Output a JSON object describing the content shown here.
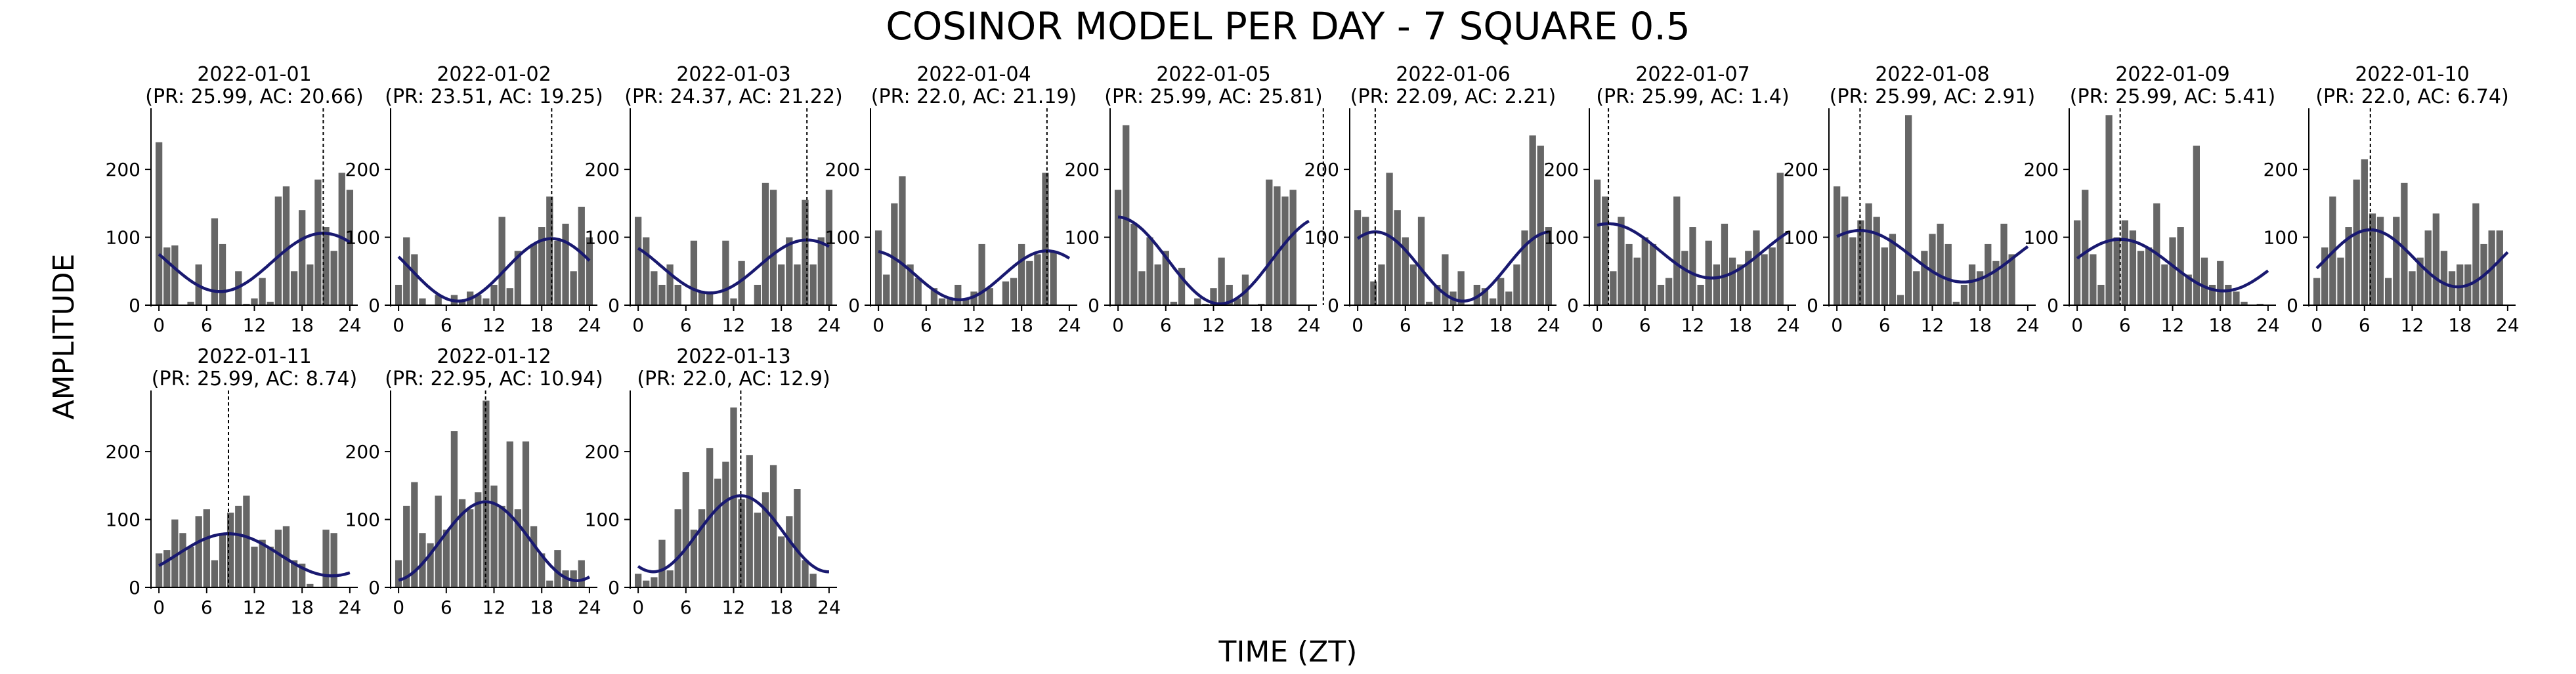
{
  "figure": {
    "title": "COSINOR MODEL PER DAY - 7 SQUARE 0.5",
    "xlabel": "TIME (ZT)",
    "ylabel": "AMPLITUDE"
  },
  "colors": {
    "bars": "#666666",
    "fit": "#191970",
    "acrophase_line": "#000000"
  },
  "chart_data": {
    "type": "bar",
    "layout": "small multiples, 10 columns x 2 rows",
    "x_ticks": [
      0,
      6,
      12,
      18,
      24
    ],
    "y_ticks": [
      0,
      100,
      200
    ],
    "xlim": [
      -1,
      25
    ],
    "ylim": [
      0,
      290
    ],
    "panels": [
      {
        "date": "2022-01-01",
        "subtitle": "(PR: 25.99, AC: 20.66)",
        "period": 25.99,
        "acrophase": 20.66,
        "mesor": 63,
        "amplitude": 43,
        "bars": [
          [
            0,
            240
          ],
          [
            1,
            85
          ],
          [
            2,
            88
          ],
          [
            4,
            5
          ],
          [
            5,
            60
          ],
          [
            7,
            128
          ],
          [
            8,
            90
          ],
          [
            10,
            50
          ],
          [
            11,
            2
          ],
          [
            12,
            10
          ],
          [
            13,
            40
          ],
          [
            14,
            5
          ],
          [
            15,
            160
          ],
          [
            16,
            175
          ],
          [
            17,
            50
          ],
          [
            18,
            140
          ],
          [
            19,
            60
          ],
          [
            20,
            185
          ],
          [
            21,
            115
          ],
          [
            22,
            80
          ],
          [
            23,
            195
          ],
          [
            24,
            170
          ]
        ]
      },
      {
        "date": "2022-01-02",
        "subtitle": "(PR: 23.51, AC: 19.25)",
        "period": 23.51,
        "acrophase": 19.25,
        "mesor": 52,
        "amplitude": 46,
        "bars": [
          [
            0,
            30
          ],
          [
            1,
            100
          ],
          [
            2,
            75
          ],
          [
            3,
            10
          ],
          [
            5,
            15
          ],
          [
            7,
            15
          ],
          [
            8,
            5
          ],
          [
            9,
            20
          ],
          [
            10,
            15
          ],
          [
            11,
            10
          ],
          [
            12,
            30
          ],
          [
            13,
            130
          ],
          [
            14,
            25
          ],
          [
            15,
            80
          ],
          [
            17,
            90
          ],
          [
            18,
            115
          ],
          [
            19,
            160
          ],
          [
            20,
            95
          ],
          [
            21,
            120
          ],
          [
            22,
            50
          ],
          [
            23,
            145
          ],
          [
            24,
            100
          ]
        ]
      },
      {
        "date": "2022-01-03",
        "subtitle": "(PR: 24.37, AC: 21.22)",
        "period": 24.37,
        "acrophase": 21.22,
        "mesor": 57,
        "amplitude": 39,
        "bars": [
          [
            0,
            130
          ],
          [
            1,
            100
          ],
          [
            2,
            50
          ],
          [
            3,
            30
          ],
          [
            4,
            60
          ],
          [
            5,
            30
          ],
          [
            7,
            95
          ],
          [
            8,
            20
          ],
          [
            9,
            20
          ],
          [
            11,
            95
          ],
          [
            12,
            10
          ],
          [
            13,
            65
          ],
          [
            15,
            30
          ],
          [
            16,
            180
          ],
          [
            17,
            170
          ],
          [
            18,
            60
          ],
          [
            19,
            100
          ],
          [
            20,
            60
          ],
          [
            21,
            155
          ],
          [
            22,
            60
          ],
          [
            23,
            100
          ],
          [
            24,
            170
          ]
        ]
      },
      {
        "date": "2022-01-04",
        "subtitle": "(PR: 22.0, AC: 21.19)",
        "period": 22.0,
        "acrophase": 21.19,
        "mesor": 44,
        "amplitude": 36,
        "bars": [
          [
            0,
            110
          ],
          [
            1,
            45
          ],
          [
            2,
            150
          ],
          [
            3,
            190
          ],
          [
            4,
            60
          ],
          [
            5,
            40
          ],
          [
            7,
            25
          ],
          [
            8,
            10
          ],
          [
            9,
            10
          ],
          [
            10,
            30
          ],
          [
            11,
            10
          ],
          [
            12,
            20
          ],
          [
            13,
            90
          ],
          [
            14,
            25
          ],
          [
            16,
            35
          ],
          [
            17,
            40
          ],
          [
            18,
            90
          ],
          [
            19,
            65
          ],
          [
            20,
            75
          ],
          [
            21,
            195
          ],
          [
            22,
            80
          ]
        ]
      },
      {
        "date": "2022-01-05",
        "subtitle": "(PR: 25.99, AC: 25.81)",
        "period": 25.99,
        "acrophase": 25.81,
        "mesor": 66,
        "amplitude": 64,
        "bars": [
          [
            0,
            170
          ],
          [
            1,
            265
          ],
          [
            2,
            120
          ],
          [
            3,
            50
          ],
          [
            4,
            100
          ],
          [
            5,
            60
          ],
          [
            6,
            80
          ],
          [
            7,
            5
          ],
          [
            8,
            55
          ],
          [
            10,
            10
          ],
          [
            11,
            2
          ],
          [
            12,
            25
          ],
          [
            13,
            70
          ],
          [
            14,
            30
          ],
          [
            15,
            10
          ],
          [
            16,
            45
          ],
          [
            18,
            2
          ],
          [
            19,
            185
          ],
          [
            20,
            175
          ],
          [
            21,
            160
          ],
          [
            22,
            170
          ]
        ]
      },
      {
        "date": "2022-01-06",
        "subtitle": "(PR: 22.09, AC: 2.21)",
        "period": 22.09,
        "acrophase": 2.21,
        "mesor": 57,
        "amplitude": 51,
        "bars": [
          [
            0,
            140
          ],
          [
            1,
            130
          ],
          [
            2,
            35
          ],
          [
            3,
            60
          ],
          [
            4,
            195
          ],
          [
            5,
            140
          ],
          [
            6,
            100
          ],
          [
            7,
            60
          ],
          [
            8,
            130
          ],
          [
            9,
            5
          ],
          [
            10,
            30
          ],
          [
            11,
            75
          ],
          [
            12,
            20
          ],
          [
            13,
            50
          ],
          [
            15,
            30
          ],
          [
            16,
            25
          ],
          [
            17,
            10
          ],
          [
            18,
            40
          ],
          [
            19,
            20
          ],
          [
            20,
            60
          ],
          [
            21,
            110
          ],
          [
            22,
            250
          ],
          [
            23,
            235
          ],
          [
            24,
            115
          ]
        ]
      },
      {
        "date": "2022-01-07",
        "subtitle": "(PR: 25.99, AC: 1.4)",
        "period": 25.99,
        "acrophase": 1.4,
        "mesor": 80,
        "amplitude": 40,
        "bars": [
          [
            0,
            185
          ],
          [
            1,
            160
          ],
          [
            2,
            50
          ],
          [
            3,
            130
          ],
          [
            4,
            90
          ],
          [
            5,
            70
          ],
          [
            6,
            100
          ],
          [
            7,
            90
          ],
          [
            8,
            30
          ],
          [
            9,
            40
          ],
          [
            10,
            160
          ],
          [
            11,
            80
          ],
          [
            12,
            115
          ],
          [
            13,
            30
          ],
          [
            14,
            95
          ],
          [
            15,
            60
          ],
          [
            16,
            120
          ],
          [
            17,
            70
          ],
          [
            18,
            60
          ],
          [
            19,
            80
          ],
          [
            20,
            110
          ],
          [
            21,
            75
          ],
          [
            22,
            85
          ],
          [
            23,
            195
          ]
        ]
      },
      {
        "date": "2022-01-08",
        "subtitle": "(PR: 25.99, AC: 2.91)",
        "period": 25.99,
        "acrophase": 2.91,
        "mesor": 72,
        "amplitude": 38,
        "bars": [
          [
            0,
            175
          ],
          [
            1,
            160
          ],
          [
            2,
            100
          ],
          [
            3,
            125
          ],
          [
            4,
            150
          ],
          [
            5,
            130
          ],
          [
            6,
            85
          ],
          [
            7,
            105
          ],
          [
            8,
            15
          ],
          [
            9,
            280
          ],
          [
            10,
            50
          ],
          [
            11,
            80
          ],
          [
            12,
            105
          ],
          [
            13,
            120
          ],
          [
            14,
            90
          ],
          [
            15,
            5
          ],
          [
            16,
            30
          ],
          [
            17,
            60
          ],
          [
            18,
            50
          ],
          [
            19,
            90
          ],
          [
            20,
            65
          ],
          [
            21,
            120
          ],
          [
            22,
            75
          ]
        ]
      },
      {
        "date": "2022-01-09",
        "subtitle": "(PR: 25.99, AC: 5.41)",
        "period": 25.99,
        "acrophase": 5.41,
        "mesor": 59,
        "amplitude": 38,
        "bars": [
          [
            0,
            125
          ],
          [
            1,
            170
          ],
          [
            2,
            75
          ],
          [
            3,
            30
          ],
          [
            4,
            280
          ],
          [
            5,
            100
          ],
          [
            6,
            125
          ],
          [
            7,
            110
          ],
          [
            8,
            80
          ],
          [
            9,
            85
          ],
          [
            10,
            150
          ],
          [
            11,
            60
          ],
          [
            12,
            100
          ],
          [
            13,
            115
          ],
          [
            14,
            45
          ],
          [
            15,
            235
          ],
          [
            16,
            70
          ],
          [
            17,
            30
          ],
          [
            18,
            65
          ],
          [
            19,
            30
          ],
          [
            20,
            20
          ],
          [
            21,
            5
          ],
          [
            23,
            2
          ]
        ]
      },
      {
        "date": "2022-01-10",
        "subtitle": "(PR: 22.0, AC: 6.74)",
        "period": 22.0,
        "acrophase": 6.74,
        "mesor": 69,
        "amplitude": 42,
        "bars": [
          [
            0,
            40
          ],
          [
            1,
            85
          ],
          [
            2,
            160
          ],
          [
            3,
            70
          ],
          [
            4,
            115
          ],
          [
            5,
            185
          ],
          [
            6,
            215
          ],
          [
            7,
            135
          ],
          [
            8,
            130
          ],
          [
            9,
            40
          ],
          [
            10,
            130
          ],
          [
            11,
            180
          ],
          [
            12,
            50
          ],
          [
            13,
            70
          ],
          [
            14,
            110
          ],
          [
            15,
            135
          ],
          [
            16,
            80
          ],
          [
            17,
            50
          ],
          [
            18,
            60
          ],
          [
            19,
            60
          ],
          [
            20,
            150
          ],
          [
            21,
            90
          ],
          [
            22,
            110
          ],
          [
            23,
            110
          ]
        ]
      },
      {
        "date": "2022-01-11",
        "subtitle": "(PR: 25.99, AC: 8.74)",
        "period": 25.99,
        "acrophase": 8.74,
        "mesor": 48,
        "amplitude": 31,
        "bars": [
          [
            0,
            50
          ],
          [
            1,
            55
          ],
          [
            2,
            100
          ],
          [
            3,
            80
          ],
          [
            4,
            60
          ],
          [
            5,
            105
          ],
          [
            6,
            115
          ],
          [
            7,
            40
          ],
          [
            8,
            80
          ],
          [
            9,
            110
          ],
          [
            10,
            120
          ],
          [
            11,
            135
          ],
          [
            12,
            60
          ],
          [
            13,
            70
          ],
          [
            14,
            60
          ],
          [
            15,
            85
          ],
          [
            16,
            90
          ],
          [
            17,
            40
          ],
          [
            18,
            35
          ],
          [
            19,
            5
          ],
          [
            21,
            85
          ],
          [
            22,
            80
          ]
        ]
      },
      {
        "date": "2022-01-12",
        "subtitle": "(PR: 22.95, AC: 10.94)",
        "period": 22.95,
        "acrophase": 10.94,
        "mesor": 68,
        "amplitude": 58,
        "bars": [
          [
            0,
            40
          ],
          [
            1,
            120
          ],
          [
            2,
            155
          ],
          [
            3,
            80
          ],
          [
            4,
            65
          ],
          [
            5,
            135
          ],
          [
            6,
            85
          ],
          [
            7,
            230
          ],
          [
            8,
            130
          ],
          [
            9,
            115
          ],
          [
            10,
            140
          ],
          [
            11,
            275
          ],
          [
            12,
            150
          ],
          [
            13,
            120
          ],
          [
            14,
            215
          ],
          [
            15,
            115
          ],
          [
            16,
            215
          ],
          [
            17,
            90
          ],
          [
            18,
            50
          ],
          [
            19,
            10
          ],
          [
            20,
            55
          ],
          [
            21,
            25
          ],
          [
            22,
            25
          ],
          [
            23,
            40
          ]
        ]
      },
      {
        "date": "2022-01-13",
        "subtitle": "(PR: 22.0, AC: 12.9)",
        "period": 22.0,
        "acrophase": 12.9,
        "mesor": 79,
        "amplitude": 56,
        "bars": [
          [
            0,
            20
          ],
          [
            1,
            10
          ],
          [
            2,
            15
          ],
          [
            3,
            70
          ],
          [
            4,
            25
          ],
          [
            5,
            115
          ],
          [
            6,
            170
          ],
          [
            7,
            85
          ],
          [
            8,
            115
          ],
          [
            9,
            205
          ],
          [
            10,
            160
          ],
          [
            11,
            185
          ],
          [
            12,
            265
          ],
          [
            13,
            130
          ],
          [
            14,
            195
          ],
          [
            15,
            110
          ],
          [
            16,
            140
          ],
          [
            17,
            180
          ],
          [
            18,
            75
          ],
          [
            19,
            105
          ],
          [
            20,
            145
          ],
          [
            21,
            40
          ],
          [
            22,
            20
          ]
        ]
      }
    ]
  }
}
